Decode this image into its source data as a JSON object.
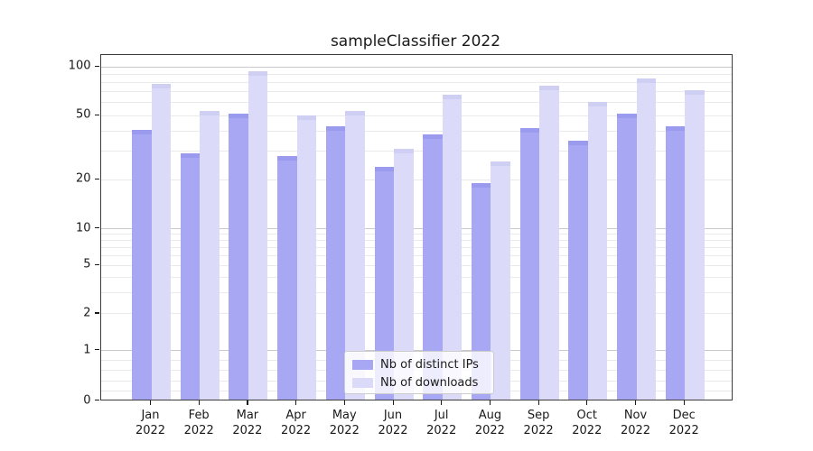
{
  "chart_data": {
    "type": "bar",
    "title": "sampleClassifier 2022",
    "categories": [
      "Jan",
      "Feb",
      "Mar",
      "Apr",
      "May",
      "Jun",
      "Jul",
      "Aug",
      "Sep",
      "Oct",
      "Nov",
      "Dec"
    ],
    "x_year_sublabel": "2022",
    "series": [
      {
        "name": "Nb of distinct IPs",
        "color": "#a7a7f3",
        "cap_color": "#9a9aee",
        "values": [
          41,
          29,
          51,
          28,
          43,
          24,
          38,
          19,
          42,
          35,
          51,
          43
        ]
      },
      {
        "name": "Nb of downloads",
        "color": "#dbdbf9",
        "cap_color": "#cfcff4",
        "values": [
          78,
          53,
          94,
          50,
          53,
          31,
          67,
          26,
          76,
          61,
          85,
          72
        ]
      }
    ],
    "yscale": "symlog",
    "y_tick_values": [
      0,
      1,
      2,
      5,
      10,
      20,
      50,
      100
    ],
    "y_major_gridlines": [
      1,
      10,
      100
    ],
    "y_minor_gridlines": [
      0.2,
      0.4,
      0.6,
      0.8,
      2,
      3,
      4,
      5,
      6,
      7,
      8,
      9,
      20,
      30,
      40,
      50,
      60,
      70,
      80,
      90
    ],
    "ylim": [
      0,
      118
    ],
    "grid": true,
    "legend_position": "lower center",
    "xlabel": "",
    "ylabel": ""
  }
}
